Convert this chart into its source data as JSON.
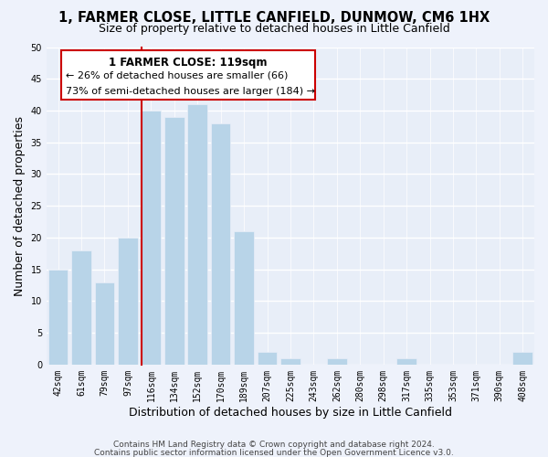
{
  "title": "1, FARMER CLOSE, LITTLE CANFIELD, DUNMOW, CM6 1HX",
  "subtitle": "Size of property relative to detached houses in Little Canfield",
  "xlabel": "Distribution of detached houses by size in Little Canfield",
  "ylabel": "Number of detached properties",
  "bin_labels": [
    "42sqm",
    "61sqm",
    "79sqm",
    "97sqm",
    "116sqm",
    "134sqm",
    "152sqm",
    "170sqm",
    "189sqm",
    "207sqm",
    "225sqm",
    "243sqm",
    "262sqm",
    "280sqm",
    "298sqm",
    "317sqm",
    "335sqm",
    "353sqm",
    "371sqm",
    "390sqm",
    "408sqm"
  ],
  "bar_heights": [
    15,
    18,
    13,
    20,
    40,
    39,
    41,
    38,
    21,
    2,
    1,
    0,
    1,
    0,
    0,
    1,
    0,
    0,
    0,
    0,
    2
  ],
  "highlight_index": 4,
  "highlight_color": "#cc0000",
  "bar_color": "#b8d4e8",
  "ylim": [
    0,
    50
  ],
  "yticks": [
    0,
    5,
    10,
    15,
    20,
    25,
    30,
    35,
    40,
    45,
    50
  ],
  "annotation_title": "1 FARMER CLOSE: 119sqm",
  "annotation_line1": "← 26% of detached houses are smaller (66)",
  "annotation_line2": "73% of semi-detached houses are larger (184) →",
  "footer1": "Contains HM Land Registry data © Crown copyright and database right 2024.",
  "footer2": "Contains public sector information licensed under the Open Government Licence v3.0.",
  "background_color": "#eef2fb",
  "plot_bg_color": "#e8eef8",
  "grid_color": "#ffffff",
  "title_fontsize": 10.5,
  "subtitle_fontsize": 9,
  "axis_label_fontsize": 9,
  "tick_fontsize": 7,
  "footer_fontsize": 6.5,
  "ann_title_fontsize": 8.5,
  "ann_text_fontsize": 8
}
